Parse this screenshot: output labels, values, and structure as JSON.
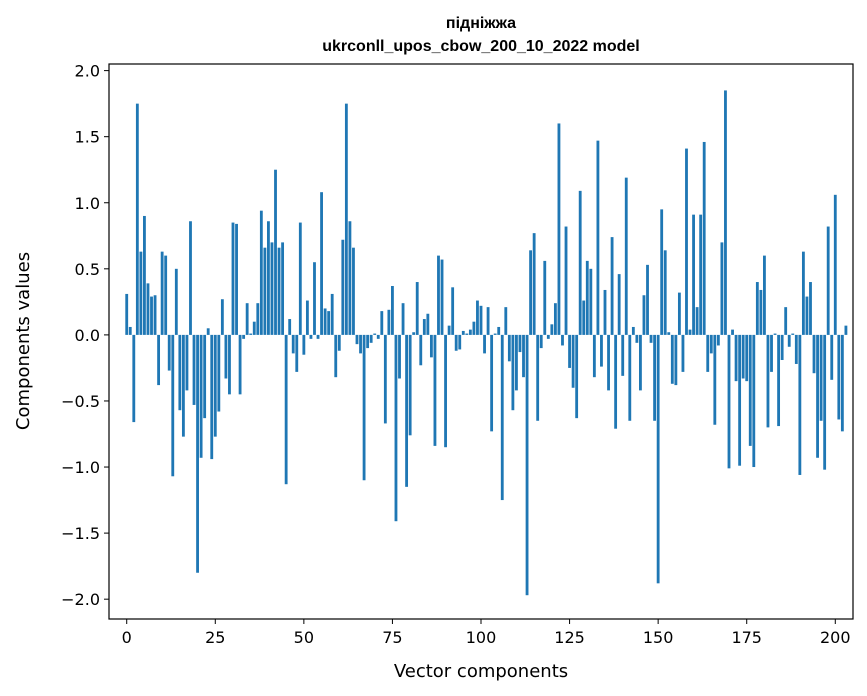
{
  "chart_data": {
    "type": "bar",
    "title_line1": "підніжжа",
    "title_line2": "ukrconll_upos_cbow_200_10_2022 model",
    "xlabel": "Vector components",
    "ylabel": "Components values",
    "xlim": [
      -5,
      205
    ],
    "ylim": [
      -2.15,
      2.05
    ],
    "xticks": [
      0,
      25,
      50,
      75,
      100,
      125,
      150,
      175,
      200
    ],
    "xtick_labels": [
      "0",
      "25",
      "50",
      "75",
      "100",
      "125",
      "150",
      "175",
      "200"
    ],
    "yticks": [
      2.0,
      1.5,
      1.0,
      0.5,
      0.0,
      -0.5,
      -1.0,
      -1.5,
      -2.0
    ],
    "ytick_labels": [
      "2.0",
      "1.5",
      "1.0",
      "0.5",
      "0.0",
      "−0.5",
      "−1.0",
      "−1.5",
      "−2.0"
    ],
    "bar_color": "#1f77b4",
    "values": [
      0.31,
      0.06,
      -0.66,
      1.75,
      0.63,
      0.9,
      0.39,
      0.29,
      0.3,
      -0.38,
      0.63,
      0.6,
      -0.27,
      -1.07,
      0.5,
      -0.57,
      -0.77,
      -0.42,
      0.86,
      -0.53,
      -1.8,
      -0.93,
      -0.63,
      0.05,
      -0.94,
      -0.77,
      -0.58,
      0.27,
      -0.33,
      -0.45,
      0.85,
      0.84,
      -0.45,
      -0.03,
      0.24,
      0.01,
      0.1,
      0.24,
      0.94,
      0.66,
      0.86,
      0.7,
      1.25,
      0.66,
      0.7,
      -1.13,
      0.12,
      -0.14,
      -0.28,
      0.85,
      -0.15,
      0.26,
      -0.03,
      0.55,
      -0.03,
      1.08,
      0.2,
      0.18,
      0.31,
      -0.32,
      -0.12,
      0.72,
      1.75,
      0.86,
      0.66,
      -0.07,
      -0.14,
      -1.1,
      -0.1,
      -0.06,
      0.01,
      -0.03,
      0.18,
      -0.67,
      0.19,
      0.37,
      -1.41,
      -0.33,
      0.24,
      -1.15,
      -0.76,
      0.02,
      0.4,
      -0.23,
      0.12,
      0.16,
      -0.17,
      -0.84,
      0.6,
      0.57,
      -0.85,
      0.07,
      0.36,
      -0.12,
      -0.11,
      0.03,
      0.01,
      0.04,
      0.1,
      0.26,
      0.22,
      -0.14,
      0.21,
      -0.73,
      0.01,
      0.06,
      -1.25,
      0.21,
      -0.2,
      -0.57,
      -0.42,
      -0.13,
      -0.32,
      -1.97,
      0.64,
      0.77,
      -0.65,
      -0.1,
      0.56,
      -0.03,
      0.08,
      0.24,
      1.6,
      -0.08,
      0.82,
      -0.25,
      -0.4,
      -0.63,
      1.09,
      0.26,
      0.56,
      0.5,
      -0.32,
      1.47,
      -0.24,
      0.34,
      -0.42,
      0.74,
      -0.71,
      0.46,
      -0.31,
      1.19,
      -0.65,
      0.06,
      -0.06,
      -0.42,
      0.3,
      0.53,
      -0.06,
      -0.65,
      -1.88,
      0.95,
      0.64,
      0.02,
      -0.37,
      -0.38,
      0.32,
      -0.28,
      1.41,
      0.04,
      0.91,
      0.21,
      0.91,
      1.46,
      -0.28,
      -0.14,
      -0.68,
      -0.08,
      0.7,
      1.85,
      -1.01,
      0.04,
      -0.35,
      -0.99,
      -0.33,
      -0.35,
      -0.84,
      -1.0,
      0.4,
      0.34,
      0.6,
      -0.7,
      -0.28,
      0.01,
      -0.69,
      -0.19,
      0.21,
      -0.09,
      0.01,
      -0.22,
      -1.06,
      0.63,
      0.29,
      0.4,
      -0.29,
      -0.93,
      -0.65,
      -1.02,
      0.82,
      -0.34,
      1.06,
      -0.64,
      -0.73,
      0.07
    ]
  }
}
